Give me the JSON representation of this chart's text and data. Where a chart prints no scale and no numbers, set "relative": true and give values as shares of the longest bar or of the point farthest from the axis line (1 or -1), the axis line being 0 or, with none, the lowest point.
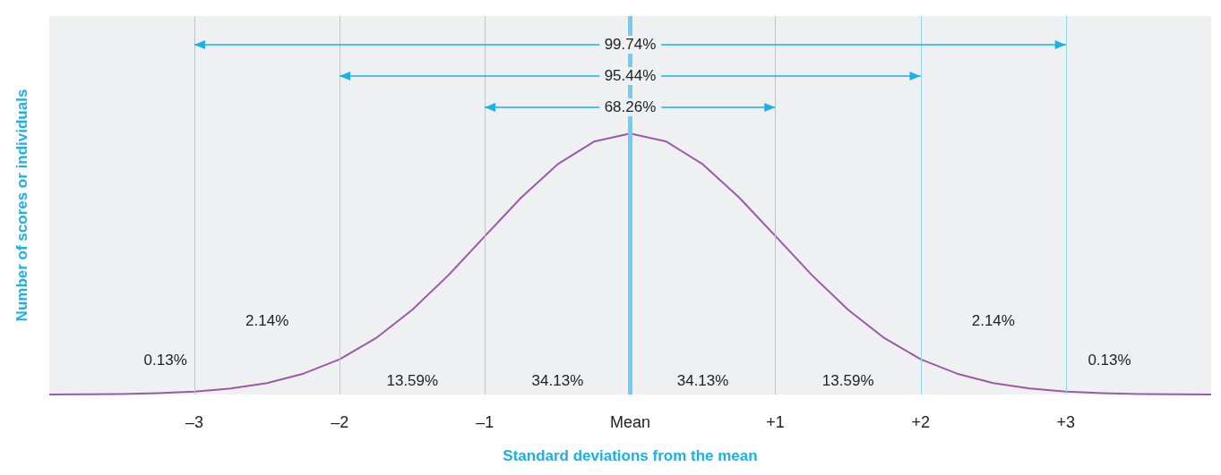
{
  "chart_data": {
    "type": "line",
    "relative": true,
    "xlabel": "Standard deviations from the mean",
    "ylabel": "Number of scores or individuals",
    "xlim": [
      -4,
      4
    ],
    "xticks": [
      {
        "value": -3,
        "label": "–3"
      },
      {
        "value": -2,
        "label": "–2"
      },
      {
        "value": -1,
        "label": "–1"
      },
      {
        "value": 0,
        "label": "Mean"
      },
      {
        "value": 1,
        "label": "+1"
      },
      {
        "value": 2,
        "label": "+2"
      },
      {
        "value": 3,
        "label": "+3"
      }
    ],
    "grid": false,
    "series": [
      {
        "color": "#9b59a8",
        "x": [
          -4,
          -3.75,
          -3.5,
          -3.25,
          -3,
          -2.75,
          -2.5,
          -2.25,
          -2,
          -1.75,
          -1.5,
          -1.25,
          -1,
          -0.75,
          -0.5,
          -0.25,
          0,
          0.25,
          0.5,
          0.75,
          1,
          1.25,
          1.5,
          1.75,
          2,
          2.25,
          2.5,
          2.75,
          3,
          3.25,
          3.5,
          3.75,
          4
        ],
        "values": [
          0.0003,
          0.001,
          0.002,
          0.005,
          0.011,
          0.023,
          0.044,
          0.08,
          0.135,
          0.216,
          0.325,
          0.458,
          0.607,
          0.755,
          0.882,
          0.969,
          1,
          0.969,
          0.882,
          0.755,
          0.607,
          0.458,
          0.325,
          0.216,
          0.135,
          0.08,
          0.044,
          0.023,
          0.011,
          0.005,
          0.002,
          0.001,
          0.0003
        ]
      }
    ],
    "ref_lines": [
      {
        "axis": "x",
        "value": -3,
        "color": "#8fd6f2"
      },
      {
        "axis": "x",
        "value": -2,
        "color": "#8fd6f2"
      },
      {
        "axis": "x",
        "value": -1,
        "color": "#8fd6f2"
      },
      {
        "axis": "x",
        "value": 0,
        "color": "#6fcdf2"
      },
      {
        "axis": "x",
        "value": 1,
        "color": "#8fd6f2"
      },
      {
        "axis": "x",
        "value": 2,
        "color": "#8fd6f2"
      },
      {
        "axis": "x",
        "value": 3,
        "color": "#8fd6f2"
      }
    ],
    "annotations": [
      "99.74%",
      "95.44%",
      "68.26%",
      "34.13%",
      "34.13%",
      "13.59%",
      "13.59%",
      "2.14%",
      "2.14%",
      "0.13%",
      "0.13%"
    ]
  }
}
